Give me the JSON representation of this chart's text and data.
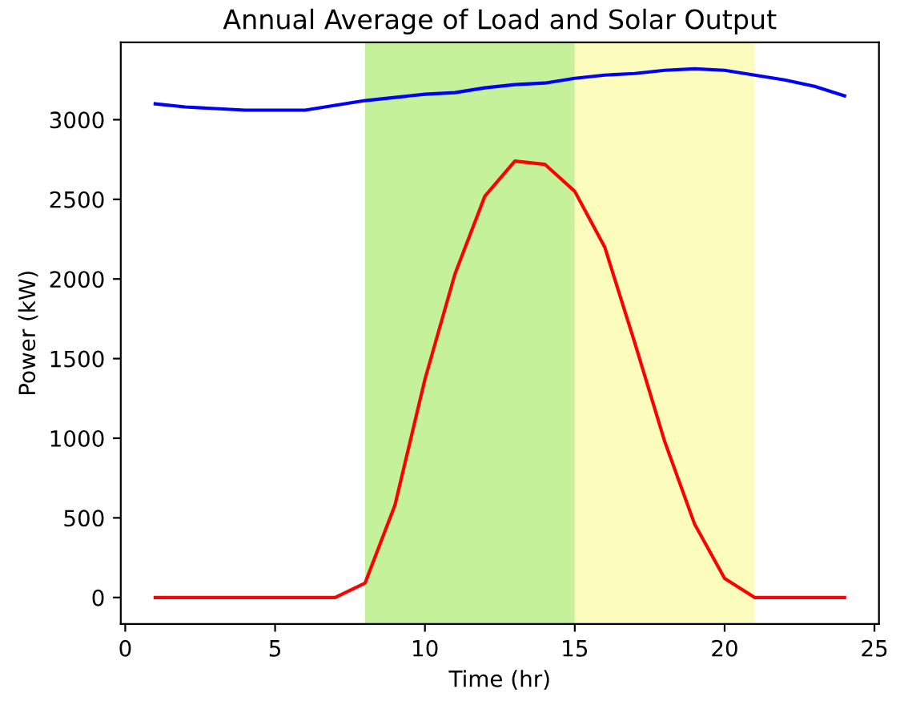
{
  "chart_data": {
    "type": "line",
    "title": "Annual Average of Load and Solar Output",
    "xlabel": "Time (hr)",
    "ylabel": "Power (kW)",
    "x": [
      1,
      2,
      3,
      4,
      5,
      6,
      7,
      8,
      9,
      10,
      11,
      12,
      13,
      14,
      15,
      16,
      17,
      18,
      19,
      20,
      21,
      22,
      23,
      24
    ],
    "series": [
      {
        "color": "#0000ff",
        "values": [
          3100,
          3080,
          3070,
          3060,
          3060,
          3060,
          3090,
          3120,
          3140,
          3160,
          3170,
          3200,
          3220,
          3230,
          3260,
          3280,
          3290,
          3310,
          3320,
          3310,
          3280,
          3250,
          3210,
          3150
        ]
      },
      {
        "color": "#ff0000",
        "values": [
          0,
          0,
          0,
          0,
          0,
          0,
          0,
          90,
          580,
          1370,
          2030,
          2520,
          2740,
          2720,
          2550,
          2200,
          1600,
          980,
          460,
          120,
          0,
          0,
          0,
          0
        ]
      }
    ],
    "bands": [
      {
        "axis": "x",
        "from": 8,
        "to": 15,
        "color": "#c4f19a"
      },
      {
        "axis": "x",
        "from": 15,
        "to": 21,
        "color": "#fcfdbd"
      }
    ],
    "xlim": [
      -0.15,
      25.15
    ],
    "ylim": [
      -166,
      3486
    ],
    "xticks": [
      0,
      5,
      10,
      15,
      20,
      25
    ],
    "yticks": [
      0,
      500,
      1000,
      1500,
      2000,
      2500,
      3000
    ],
    "grid": false,
    "legend": false
  }
}
